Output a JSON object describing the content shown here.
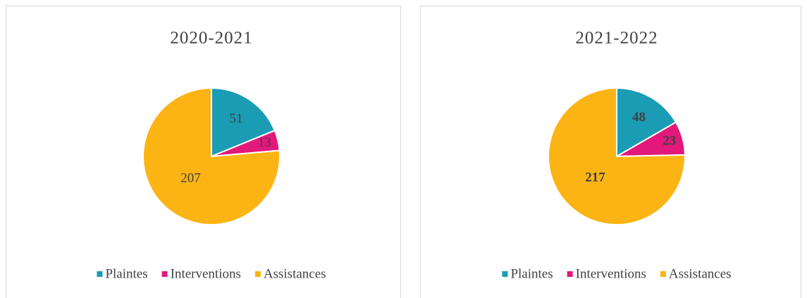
{
  "chart_data": [
    {
      "type": "pie",
      "title": "2020-2021",
      "categories": [
        "Plaintes",
        "Interventions",
        "Assistances"
      ],
      "values": [
        51,
        13,
        207
      ],
      "colors": [
        "#1b9cb5",
        "#e2187b",
        "#fbb413"
      ],
      "legend": "bottom",
      "data_labels_bold": false
    },
    {
      "type": "pie",
      "title": "2021-2022",
      "categories": [
        "Plaintes",
        "Interventions",
        "Assistances"
      ],
      "values": [
        48,
        23,
        217
      ],
      "colors": [
        "#1b9cb5",
        "#e2187b",
        "#fbb413"
      ],
      "legend": "bottom",
      "data_labels_bold": true
    }
  ]
}
